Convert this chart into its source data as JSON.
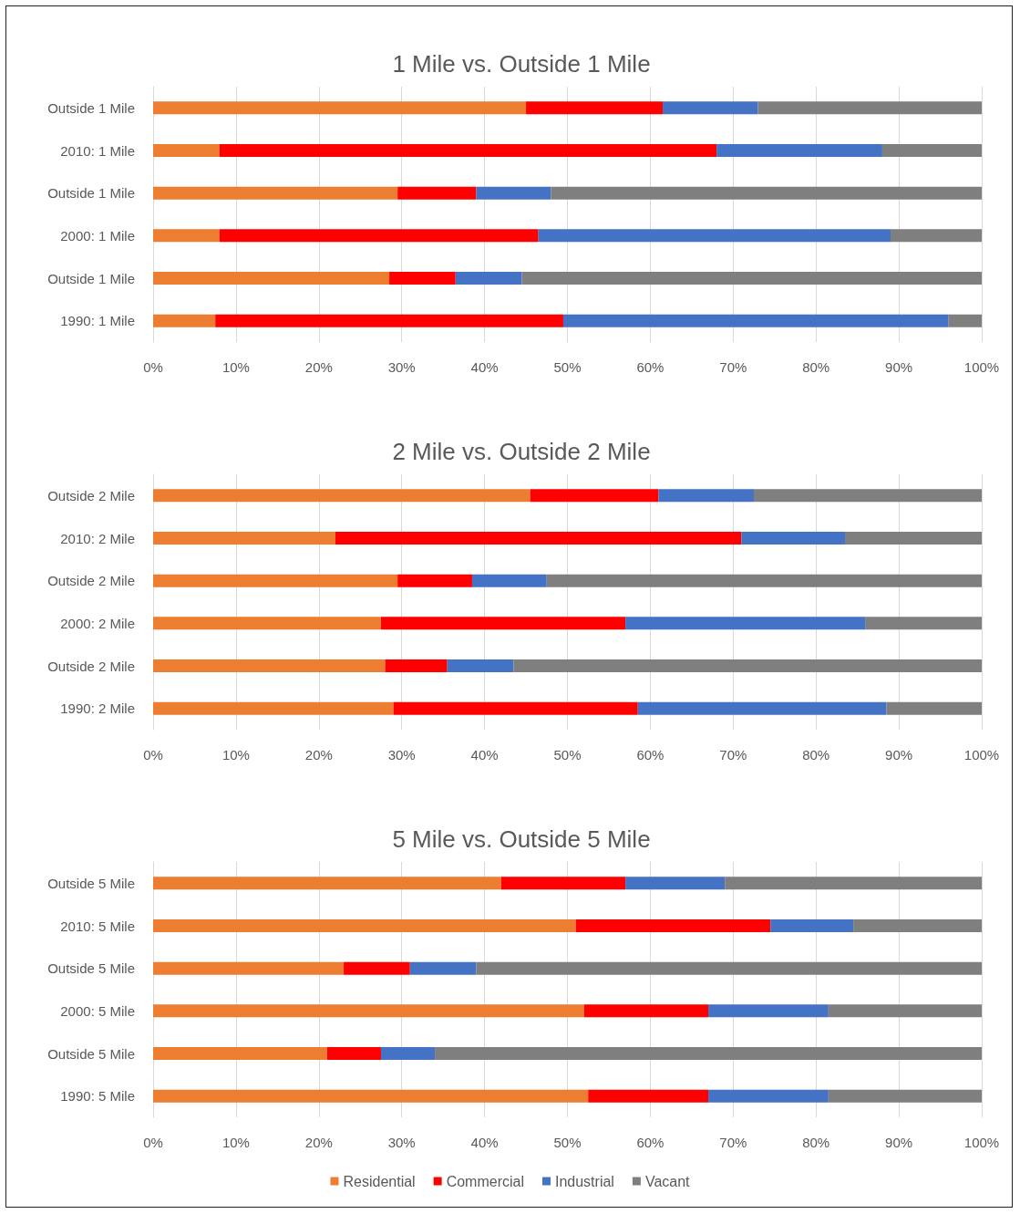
{
  "chart_data": [
    {
      "type": "bar",
      "orientation": "horizontal",
      "stacked": true,
      "title": "1 Mile vs. Outside 1 Mile",
      "categories": [
        "Outside 1 Mile",
        "2010: 1 Mile",
        "Outside 1 Mile",
        "2000: 1 Mile",
        "Outside 1 Mile",
        "1990: 1 Mile"
      ],
      "series": [
        {
          "color": "#ed7d31",
          "values": [
            45,
            8,
            29.5,
            8,
            28.5,
            7.5
          ]
        },
        {
          "color": "#ff0000",
          "values": [
            16.5,
            60,
            9.5,
            38.5,
            8,
            42
          ]
        },
        {
          "color": "#4472c4",
          "values": [
            11.5,
            20,
            9,
            42.5,
            8,
            46.5
          ]
        },
        {
          "color": "#7f7f7f",
          "values": [
            27,
            12,
            52,
            11,
            55.5,
            4
          ]
        }
      ],
      "xlim": [
        0,
        100
      ],
      "xticks": [
        {
          "value": 0,
          "label": "0%"
        },
        {
          "value": 10,
          "label": "10%"
        },
        {
          "value": 20,
          "label": "20%"
        },
        {
          "value": 30,
          "label": "30%"
        },
        {
          "value": 40,
          "label": "40%"
        },
        {
          "value": 50,
          "label": "50%"
        },
        {
          "value": 60,
          "label": "60%"
        },
        {
          "value": 70,
          "label": "70%"
        },
        {
          "value": 80,
          "label": "80%"
        },
        {
          "value": 90,
          "label": "90%"
        },
        {
          "value": 100,
          "label": "100%"
        }
      ],
      "grid": "x",
      "legend": false
    },
    {
      "type": "bar",
      "orientation": "horizontal",
      "stacked": true,
      "title": "2 Mile vs. Outside 2 Mile",
      "categories": [
        "Outside 2 Mile",
        "2010: 2 Mile",
        "Outside 2 Mile",
        "2000: 2 Mile",
        "Outside 2 Mile",
        "1990: 2 Mile"
      ],
      "series": [
        {
          "color": "#ed7d31",
          "values": [
            45.5,
            22,
            29.5,
            27.5,
            28,
            29
          ]
        },
        {
          "color": "#ff0000",
          "values": [
            15.5,
            49,
            9,
            29.5,
            7.5,
            29.5
          ]
        },
        {
          "color": "#4472c4",
          "values": [
            11.5,
            12.5,
            9,
            29,
            8,
            30
          ]
        },
        {
          "color": "#7f7f7f",
          "values": [
            27.5,
            16.5,
            52.5,
            14,
            56.5,
            11.5
          ]
        }
      ],
      "xlim": [
        0,
        100
      ],
      "xticks": [
        {
          "value": 0,
          "label": "0%"
        },
        {
          "value": 10,
          "label": "10%"
        },
        {
          "value": 20,
          "label": "20%"
        },
        {
          "value": 30,
          "label": "30%"
        },
        {
          "value": 40,
          "label": "40%"
        },
        {
          "value": 50,
          "label": "50%"
        },
        {
          "value": 60,
          "label": "60%"
        },
        {
          "value": 70,
          "label": "70%"
        },
        {
          "value": 80,
          "label": "80%"
        },
        {
          "value": 90,
          "label": "90%"
        },
        {
          "value": 100,
          "label": "100%"
        }
      ],
      "grid": "x",
      "legend": false
    },
    {
      "type": "bar",
      "orientation": "horizontal",
      "stacked": true,
      "title": "5 Mile vs. Outside 5 Mile",
      "categories": [
        "Outside 5 Mile",
        "2010: 5 Mile",
        "Outside 5 Mile",
        "2000: 5 Mile",
        "Outside 5 Mile",
        "1990: 5 Mile"
      ],
      "series": [
        {
          "name": "Residential",
          "color": "#ed7d31",
          "values": [
            42,
            51,
            23,
            52,
            21,
            52.5
          ]
        },
        {
          "name": "Commercial",
          "color": "#ff0000",
          "values": [
            15,
            23.5,
            8,
            15,
            6.5,
            14.5
          ]
        },
        {
          "name": "Industrial",
          "color": "#4472c4",
          "values": [
            12,
            10,
            8,
            14.5,
            6.5,
            14.5
          ]
        },
        {
          "name": "Vacant",
          "color": "#7f7f7f",
          "values": [
            31,
            15.5,
            61,
            18.5,
            66,
            18.5
          ]
        }
      ],
      "xlim": [
        0,
        100
      ],
      "xticks": [
        {
          "value": 0,
          "label": "0%"
        },
        {
          "value": 10,
          "label": "10%"
        },
        {
          "value": 20,
          "label": "20%"
        },
        {
          "value": 30,
          "label": "30%"
        },
        {
          "value": 40,
          "label": "40%"
        },
        {
          "value": 50,
          "label": "50%"
        },
        {
          "value": 60,
          "label": "60%"
        },
        {
          "value": 70,
          "label": "70%"
        },
        {
          "value": 80,
          "label": "80%"
        },
        {
          "value": 90,
          "label": "90%"
        },
        {
          "value": 100,
          "label": "100%"
        }
      ],
      "grid": "x",
      "legend": "bottom"
    }
  ]
}
